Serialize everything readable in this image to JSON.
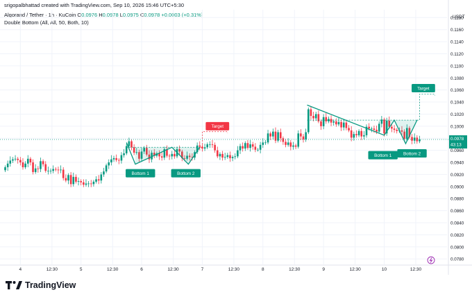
{
  "header": {
    "created_by": "srigopalbhattad created with TradingView.com, Sep 10, 2026 15:46 UTC+5:30",
    "symbol": "Algorand / Tether · 1h · KuCoin",
    "ohlc": {
      "o_label": "O",
      "o": "0.0976",
      "h_label": "H",
      "h": "0.0978",
      "l_label": "L",
      "l": "0.0975",
      "c_label": "C",
      "c": "0.0978",
      "change": "+0.0003 (+0.31%)"
    },
    "indicator": "Double Bottom (All, All, 50, Both, 10)"
  },
  "footer": {
    "brand": "TradingView"
  },
  "colors": {
    "up": "#089981",
    "down": "#f23645",
    "pattern": "#089981",
    "target_bear": "#f23645",
    "grid": "#f0f3fa"
  },
  "chart_data": {
    "type": "candlestick",
    "y_axis_label": "USDT",
    "ylim": [
      0.0771,
      0.1193
    ],
    "y_ticks": [
      "0.1180",
      "0.1160",
      "0.1140",
      "0.1120",
      "0.1100",
      "0.1080",
      "0.1060",
      "0.1040",
      "0.1020",
      "0.1000",
      "0.0980",
      "0.0960",
      "0.0940",
      "0.0920",
      "0.0900",
      "0.0880",
      "0.0860",
      "0.0840",
      "0.0820",
      "0.0800",
      "0.0780"
    ],
    "x_ticks": [
      {
        "label": "4",
        "t": 6
      },
      {
        "label": "12:30",
        "t": 18.5
      },
      {
        "label": "5",
        "t": 30
      },
      {
        "label": "12:30",
        "t": 42.5
      },
      {
        "label": "6",
        "t": 54
      },
      {
        "label": "12:30",
        "t": 66.5
      },
      {
        "label": "7",
        "t": 78
      },
      {
        "label": "12:30",
        "t": 90.5
      },
      {
        "label": "8",
        "t": 102
      },
      {
        "label": "12:30",
        "t": 114.5
      },
      {
        "label": "9",
        "t": 126
      },
      {
        "label": "12:30",
        "t": 138.5
      },
      {
        "label": "10",
        "t": 150
      },
      {
        "label": "12:30",
        "t": 162.5
      }
    ],
    "last_price": "0.0978",
    "countdown": "43:13",
    "closes": [
      0.0932,
      0.0938,
      0.0943,
      0.0945,
      0.0946,
      0.0944,
      0.094,
      0.0932,
      0.0938,
      0.0946,
      0.094,
      0.0924,
      0.093,
      0.0929,
      0.0942,
      0.0937,
      0.0926,
      0.0926,
      0.0926,
      0.0929,
      0.0928,
      0.0927,
      0.0928,
      0.0914,
      0.091,
      0.0919,
      0.0904,
      0.0916,
      0.0908,
      0.0909,
      0.0907,
      0.0903,
      0.0905,
      0.0905,
      0.0904,
      0.0908,
      0.0912,
      0.091,
      0.092,
      0.0925,
      0.0935,
      0.094,
      0.0945,
      0.0947,
      0.0944,
      0.0943,
      0.0952,
      0.0955,
      0.0967,
      0.0975,
      0.0965,
      0.0956,
      0.0957,
      0.0946,
      0.0958,
      0.0964,
      0.0953,
      0.0945,
      0.0956,
      0.0951,
      0.0955,
      0.095,
      0.0948,
      0.0962,
      0.0951,
      0.095,
      0.0954,
      0.095,
      0.0962,
      0.0958,
      0.0947,
      0.0946,
      0.0951,
      0.0949,
      0.0948,
      0.0957,
      0.0968,
      0.0966,
      0.0963,
      0.0965,
      0.097,
      0.097,
      0.0969,
      0.096,
      0.095,
      0.0954,
      0.0948,
      0.0949,
      0.0952,
      0.0947,
      0.0949,
      0.095,
      0.096,
      0.0967,
      0.0963,
      0.0972,
      0.0964,
      0.097,
      0.0966,
      0.0961,
      0.0961,
      0.0969,
      0.0973,
      0.0973,
      0.0988,
      0.0983,
      0.0991,
      0.0976,
      0.099,
      0.098,
      0.0974,
      0.0969,
      0.0973,
      0.0966,
      0.0968,
      0.0966,
      0.0988,
      0.0983,
      0.0978,
      0.099,
      0.1028,
      0.1017,
      0.1013,
      0.102,
      0.1008,
      0.1,
      0.1015,
      0.1008,
      0.1012,
      0.1006,
      0.1008,
      0.1003,
      0.1007,
      0.0998,
      0.1006,
      0.0997,
      0.0993,
      0.0981,
      0.0987,
      0.0985,
      0.0992,
      0.0983,
      0.0985,
      0.0999,
      0.0996,
      0.0996,
      0.0994,
      0.0991,
      0.1004,
      0.1011,
      0.0988,
      0.1009,
      0.0999,
      0.0996,
      0.0994,
      0.0992,
      0.0993,
      0.0991,
      0.0979,
      0.0997,
      0.0982,
      0.0976,
      0.0981,
      0.0975,
      0.0978
    ]
  },
  "patterns": [
    {
      "peak_left": [
        48,
        0.0973
      ],
      "bottom1": [
        51.5,
        0.0937
      ],
      "neck": [
        66,
        0.0965
      ],
      "bottom2": [
        72.5,
        0.0937
      ],
      "peak_right": [
        77,
        0.0965
      ],
      "target": [
        [
          77,
          0.0965
        ],
        [
          78,
          0.0965
        ],
        [
          78,
          0.0991
        ],
        [
          88,
          0.0991
        ],
        [
          88,
          0.0989
        ]
      ],
      "bottom1_label": "Bottom 1",
      "bottom1_label_at": [
        53.5,
        0.0922
      ],
      "bottom2_label": "Bottom 2",
      "bottom2_label_at": [
        71.5,
        0.0922
      ],
      "target_label": "Target",
      "target_label_at": [
        84,
        0.1
      ],
      "target_color": "#f23645"
    },
    {
      "peak_left": [
        119.5,
        0.1035
      ],
      "bottom1": [
        150,
        0.0985
      ],
      "neck": [
        154,
        0.101
      ],
      "bottom2": [
        158.5,
        0.0971
      ],
      "peak_right": [
        163,
        0.101
      ],
      "target": [
        [
          163,
          0.101
        ],
        [
          164,
          0.101
        ],
        [
          164,
          0.1053
        ],
        [
          170,
          0.1053
        ],
        [
          170,
          0.1051
        ]
      ],
      "bottom1_label": "Bottom 1",
      "bottom1_label_at": [
        149.5,
        0.0952
      ],
      "bottom2_label": "Bottom 2",
      "bottom2_label_at": [
        161,
        0.0955
      ],
      "target_label": "Target",
      "target_label_at": [
        165.5,
        0.1063
      ],
      "target_color": "#089981"
    }
  ]
}
